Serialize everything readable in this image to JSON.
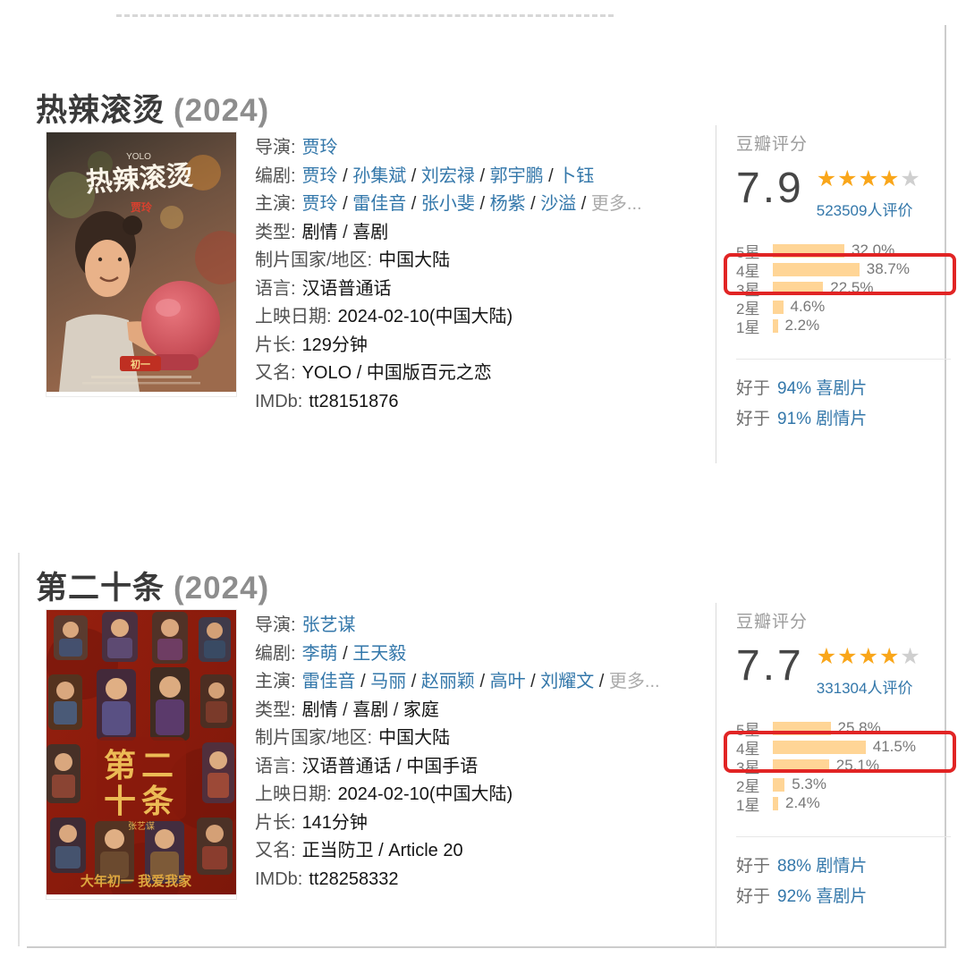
{
  "page": {
    "colors": {
      "link_blue": "#3377aa",
      "star_orange": "#f9a61a",
      "star_gray": "#cfcfcf",
      "bar_orange": "#ffd596",
      "highlight_red": "#e12424",
      "score_gray": "#464646"
    }
  },
  "movies": [
    {
      "title": "热辣滚烫",
      "year": "(2024)",
      "poster": {
        "logo": "YOLO",
        "title": "热辣滚烫",
        "credit": "贾玲",
        "banner": "初一"
      },
      "info": [
        {
          "label": "导演:",
          "segments": [
            {
              "t": "贾玲",
              "s": "link"
            }
          ]
        },
        {
          "label": "编剧:",
          "segments": [
            {
              "t": "贾玲",
              "s": "link"
            },
            {
              "t": " / ",
              "s": "sep"
            },
            {
              "t": "孙集斌",
              "s": "link"
            },
            {
              "t": " / ",
              "s": "sep"
            },
            {
              "t": "刘宏禄",
              "s": "link"
            },
            {
              "t": " / ",
              "s": "sep"
            },
            {
              "t": "郭宇鹏",
              "s": "link"
            },
            {
              "t": " / ",
              "s": "sep"
            },
            {
              "t": "卜钰",
              "s": "link"
            }
          ]
        },
        {
          "label": "主演:",
          "segments": [
            {
              "t": "贾玲",
              "s": "link"
            },
            {
              "t": " / ",
              "s": "sep"
            },
            {
              "t": "雷佳音",
              "s": "link"
            },
            {
              "t": " / ",
              "s": "sep"
            },
            {
              "t": "张小斐",
              "s": "link"
            },
            {
              "t": " / ",
              "s": "sep"
            },
            {
              "t": "杨紫",
              "s": "link"
            },
            {
              "t": " / ",
              "s": "sep"
            },
            {
              "t": "沙溢",
              "s": "link"
            },
            {
              "t": " / ",
              "s": "sep"
            },
            {
              "t": "更多...",
              "s": "muted"
            }
          ]
        },
        {
          "label": "类型:",
          "segments": [
            {
              "t": "剧情",
              "s": "plain"
            },
            {
              "t": " / ",
              "s": "sep"
            },
            {
              "t": "喜剧",
              "s": "plain"
            }
          ]
        },
        {
          "label": "制片国家/地区:",
          "segments": [
            {
              "t": "中国大陆",
              "s": "plain"
            }
          ]
        },
        {
          "label": "语言:",
          "segments": [
            {
              "t": "汉语普通话",
              "s": "plain"
            }
          ]
        },
        {
          "label": "上映日期:",
          "segments": [
            {
              "t": "2024-02-10(中国大陆)",
              "s": "plain"
            }
          ]
        },
        {
          "label": "片长:",
          "segments": [
            {
              "t": "129分钟",
              "s": "plain"
            }
          ]
        },
        {
          "label": "又名:",
          "segments": [
            {
              "t": "YOLO / 中国版百元之恋",
              "s": "plain"
            }
          ]
        },
        {
          "label": "IMDb:",
          "segments": [
            {
              "t": "tt28151876",
              "s": "plain"
            }
          ]
        }
      ],
      "rating": {
        "header": "豆瓣评分",
        "score": "7.9",
        "stars_filled": 4,
        "stars_total": 5,
        "votes": "523509人评价",
        "distribution": [
          {
            "label": "5星",
            "pct": "32.0%",
            "value": 32.0,
            "highlight": false
          },
          {
            "label": "4星",
            "pct": "38.7%",
            "value": 38.7,
            "highlight": true
          },
          {
            "label": "3星",
            "pct": "22.5%",
            "value": 22.5,
            "highlight": false
          },
          {
            "label": "2星",
            "pct": "4.6%",
            "value": 4.6,
            "highlight": false
          },
          {
            "label": "1星",
            "pct": "2.2%",
            "value": 2.2,
            "highlight": false
          }
        ],
        "better_than": [
          {
            "prefix": "好于",
            "link": "94% 喜剧片"
          },
          {
            "prefix": "好于",
            "link": "91% 剧情片"
          }
        ]
      }
    },
    {
      "title": "第二十条",
      "year": "(2024)",
      "poster": {
        "title_line1": "第二",
        "title_line2": "十条",
        "credit": "张艺谋",
        "tagline": "大年初一 我爱我家"
      },
      "info": [
        {
          "label": "导演:",
          "segments": [
            {
              "t": "张艺谋",
              "s": "link"
            }
          ]
        },
        {
          "label": "编剧:",
          "segments": [
            {
              "t": "李萌",
              "s": "link"
            },
            {
              "t": " / ",
              "s": "sep"
            },
            {
              "t": "王天毅",
              "s": "link"
            }
          ]
        },
        {
          "label": "主演:",
          "segments": [
            {
              "t": "雷佳音",
              "s": "link"
            },
            {
              "t": " / ",
              "s": "sep"
            },
            {
              "t": "马丽",
              "s": "link"
            },
            {
              "t": " / ",
              "s": "sep"
            },
            {
              "t": "赵丽颖",
              "s": "link"
            },
            {
              "t": " / ",
              "s": "sep"
            },
            {
              "t": "高叶",
              "s": "link"
            },
            {
              "t": " / ",
              "s": "sep"
            },
            {
              "t": "刘耀文",
              "s": "link"
            },
            {
              "t": " / ",
              "s": "sep"
            },
            {
              "t": "更多...",
              "s": "muted"
            }
          ]
        },
        {
          "label": "类型:",
          "segments": [
            {
              "t": "剧情",
              "s": "plain"
            },
            {
              "t": " / ",
              "s": "sep"
            },
            {
              "t": "喜剧",
              "s": "plain"
            },
            {
              "t": " / ",
              "s": "sep"
            },
            {
              "t": "家庭",
              "s": "plain"
            }
          ]
        },
        {
          "label": "制片国家/地区:",
          "segments": [
            {
              "t": "中国大陆",
              "s": "plain"
            }
          ]
        },
        {
          "label": "语言:",
          "segments": [
            {
              "t": "汉语普通话 / 中国手语",
              "s": "plain"
            }
          ]
        },
        {
          "label": "上映日期:",
          "segments": [
            {
              "t": "2024-02-10(中国大陆)",
              "s": "plain"
            }
          ]
        },
        {
          "label": "片长:",
          "segments": [
            {
              "t": "141分钟",
              "s": "plain"
            }
          ]
        },
        {
          "label": "又名:",
          "segments": [
            {
              "t": "正当防卫 / Article 20",
              "s": "plain"
            }
          ]
        },
        {
          "label": "IMDb:",
          "segments": [
            {
              "t": "tt28258332",
              "s": "plain"
            }
          ]
        }
      ],
      "rating": {
        "header": "豆瓣评分",
        "score": "7.7",
        "stars_filled": 4,
        "stars_total": 5,
        "votes": "331304人评价",
        "distribution": [
          {
            "label": "5星",
            "pct": "25.8%",
            "value": 25.8,
            "highlight": false
          },
          {
            "label": "4星",
            "pct": "41.5%",
            "value": 41.5,
            "highlight": true
          },
          {
            "label": "3星",
            "pct": "25.1%",
            "value": 25.1,
            "highlight": false
          },
          {
            "label": "2星",
            "pct": "5.3%",
            "value": 5.3,
            "highlight": false
          },
          {
            "label": "1星",
            "pct": "2.4%",
            "value": 2.4,
            "highlight": false
          }
        ],
        "better_than": [
          {
            "prefix": "好于",
            "link": "88% 剧情片"
          },
          {
            "prefix": "好于",
            "link": "92% 喜剧片"
          }
        ]
      }
    }
  ]
}
